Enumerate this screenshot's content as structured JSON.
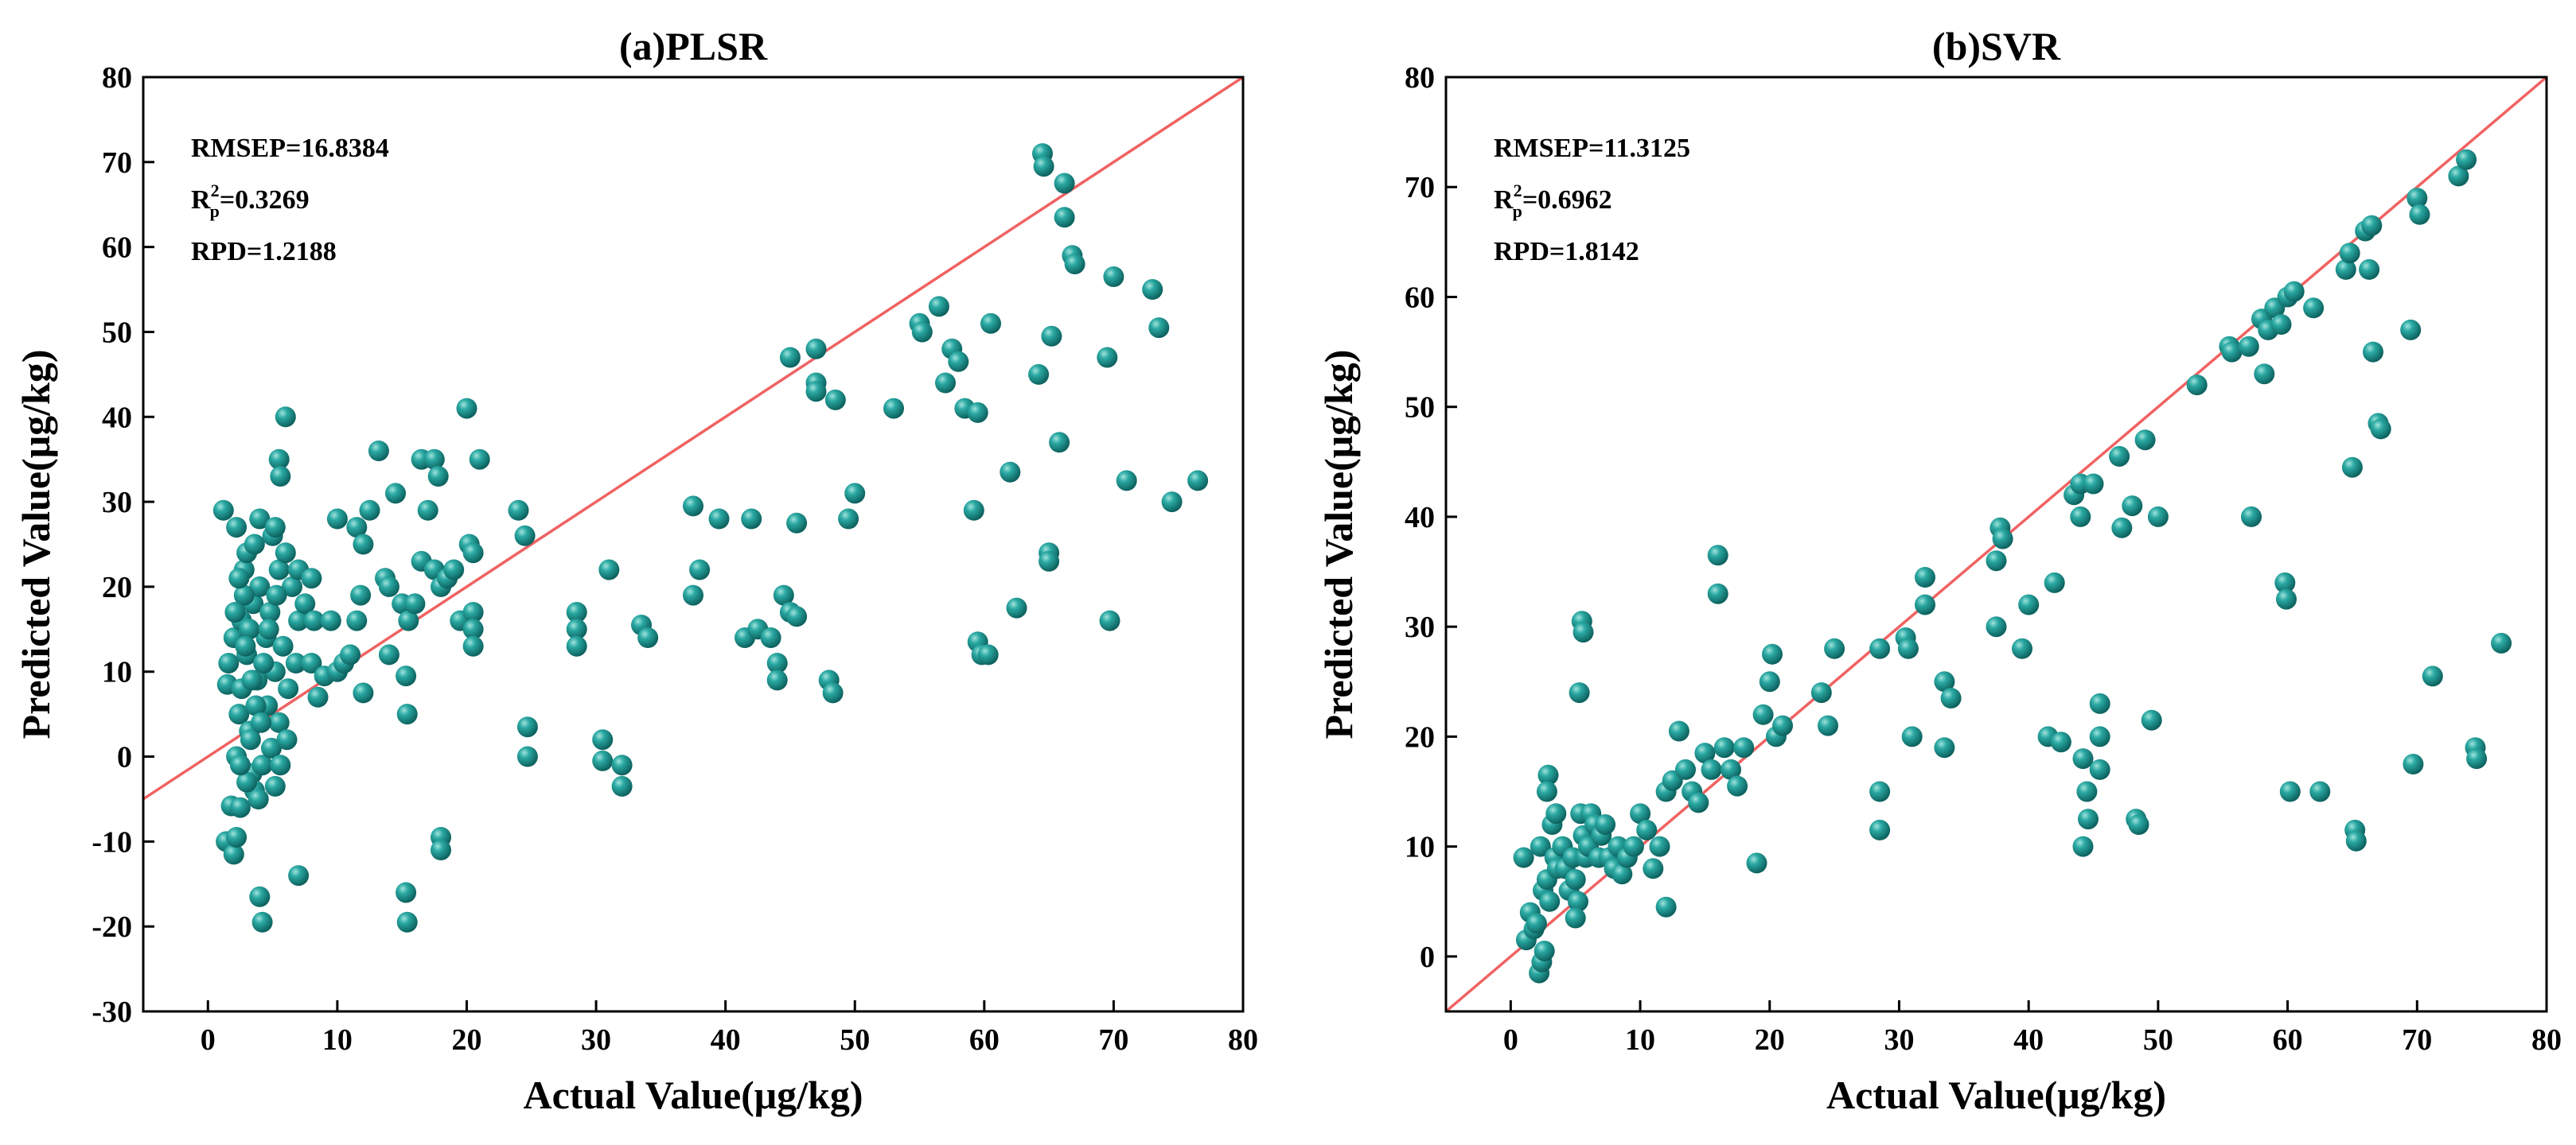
{
  "chart_data": [
    {
      "type": "scatter",
      "title": "(a)PLSR",
      "xlabel": "Actual Value(μg/kg)",
      "ylabel": "Predicted Value(μg/kg)",
      "xlim": [
        -5,
        80
      ],
      "ylim": [
        -30,
        80
      ],
      "xticks": [
        0,
        10,
        20,
        30,
        40,
        50,
        60,
        70,
        80
      ],
      "yticks": [
        -30,
        -20,
        -10,
        0,
        10,
        20,
        30,
        40,
        50,
        60,
        70,
        80
      ],
      "grid": false,
      "reference_line": "y = x",
      "reference_color": "#f06262",
      "point_color": "#178f8c",
      "annotations": [
        {
          "label": "RMSEP",
          "value": "16.8384"
        },
        {
          "label": "R",
          "superscript": "2",
          "subscript": "p",
          "value": "0.3269"
        },
        {
          "label": "RPD",
          "value": "1.2188"
        }
      ],
      "points": [
        [
          1.2,
          29
        ],
        [
          1.5,
          8.5
        ],
        [
          1.8,
          -5.8
        ],
        [
          1.4,
          -10
        ],
        [
          2,
          -11.5
        ],
        [
          2.2,
          -9.5
        ],
        [
          2.5,
          -6
        ],
        [
          1.6,
          11
        ],
        [
          2,
          14
        ],
        [
          2.2,
          27
        ],
        [
          2.4,
          5
        ],
        [
          2.6,
          16
        ],
        [
          2.8,
          22
        ],
        [
          3,
          24
        ],
        [
          3.2,
          3
        ],
        [
          3.4,
          -2
        ],
        [
          3.6,
          -4
        ],
        [
          2.2,
          0
        ],
        [
          2.6,
          8
        ],
        [
          3,
          12
        ],
        [
          3.5,
          18
        ],
        [
          4,
          20
        ],
        [
          4.5,
          14
        ],
        [
          4.8,
          17
        ],
        [
          5.2,
          10
        ],
        [
          5.5,
          4
        ],
        [
          4.2,
          -1
        ],
        [
          4.6,
          6
        ],
        [
          3.8,
          9
        ],
        [
          3.2,
          15
        ],
        [
          2.8,
          19
        ],
        [
          2.4,
          21
        ],
        [
          3.6,
          25
        ],
        [
          4,
          28
        ],
        [
          5,
          26
        ],
        [
          5.5,
          22
        ],
        [
          6,
          24
        ],
        [
          6.5,
          20
        ],
        [
          7,
          16
        ],
        [
          7.5,
          18
        ],
        [
          5.8,
          13
        ],
        [
          6.2,
          8
        ],
        [
          6.8,
          11
        ],
        [
          3,
          -3
        ],
        [
          3.3,
          2
        ],
        [
          3.7,
          6
        ],
        [
          4.3,
          11
        ],
        [
          4.7,
          15
        ],
        [
          5.3,
          19
        ],
        [
          2.1,
          17
        ],
        [
          2.9,
          13
        ],
        [
          3.4,
          9
        ],
        [
          4.1,
          4
        ],
        [
          4.9,
          1
        ],
        [
          5.6,
          -1
        ],
        [
          6.1,
          2
        ],
        [
          2.5,
          -1
        ],
        [
          3.9,
          -5
        ],
        [
          5.2,
          -3.5
        ],
        [
          6,
          40
        ],
        [
          5.5,
          35
        ],
        [
          5.6,
          33
        ],
        [
          5.2,
          27
        ],
        [
          4,
          -16.5
        ],
        [
          4.2,
          -19.5
        ],
        [
          7,
          -14
        ],
        [
          7,
          22
        ],
        [
          8,
          21
        ],
        [
          8.2,
          16
        ],
        [
          8,
          11
        ],
        [
          8.5,
          7
        ],
        [
          9,
          9.5
        ],
        [
          10,
          10
        ],
        [
          10.5,
          11
        ],
        [
          11,
          12
        ],
        [
          9.5,
          16
        ],
        [
          10,
          28
        ],
        [
          11.5,
          27
        ],
        [
          12,
          25
        ],
        [
          12.5,
          29
        ],
        [
          11.5,
          16
        ],
        [
          11.8,
          19
        ],
        [
          12,
          7.5
        ],
        [
          13.2,
          36
        ],
        [
          13.7,
          21
        ],
        [
          14,
          20
        ],
        [
          14,
          12
        ],
        [
          14.5,
          31
        ],
        [
          15,
          18
        ],
        [
          15.5,
          16
        ],
        [
          15.3,
          9.5
        ],
        [
          15.4,
          5
        ],
        [
          15.3,
          -16
        ],
        [
          15.4,
          -19.5
        ],
        [
          16.5,
          35
        ],
        [
          17,
          29
        ],
        [
          16.5,
          23
        ],
        [
          17.5,
          22
        ],
        [
          18,
          20
        ],
        [
          16,
          18
        ],
        [
          17.5,
          35
        ],
        [
          17.8,
          33
        ],
        [
          18.5,
          21
        ],
        [
          18,
          -9.5
        ],
        [
          18,
          -11
        ],
        [
          19,
          22
        ],
        [
          19.5,
          16
        ],
        [
          20,
          41
        ],
        [
          20.2,
          25
        ],
        [
          20.5,
          24
        ],
        [
          20.5,
          17
        ],
        [
          20.5,
          15
        ],
        [
          20.5,
          13
        ],
        [
          21,
          35
        ],
        [
          24,
          29
        ],
        [
          24.5,
          26
        ],
        [
          24.7,
          3.5
        ],
        [
          24.7,
          0
        ],
        [
          28.5,
          17
        ],
        [
          28.5,
          15
        ],
        [
          28.5,
          13
        ],
        [
          30.5,
          2
        ],
        [
          30.5,
          -0.5
        ],
        [
          31,
          22
        ],
        [
          32,
          -1
        ],
        [
          32,
          -3.5
        ],
        [
          33.5,
          15.5
        ],
        [
          34,
          14
        ],
        [
          37.5,
          29.5
        ],
        [
          37.5,
          19
        ],
        [
          38,
          22
        ],
        [
          39.5,
          28
        ],
        [
          41.5,
          14
        ],
        [
          42,
          28
        ],
        [
          42.5,
          15
        ],
        [
          43.5,
          14
        ],
        [
          44,
          11
        ],
        [
          44,
          9
        ],
        [
          44.5,
          19
        ],
        [
          45,
          17
        ],
        [
          45.5,
          16.5
        ],
        [
          45,
          47
        ],
        [
          45.5,
          27.5
        ],
        [
          47,
          48
        ],
        [
          47,
          44
        ],
        [
          47,
          43
        ],
        [
          48,
          9
        ],
        [
          48.3,
          7.5
        ],
        [
          48.5,
          42
        ],
        [
          49.5,
          28
        ],
        [
          50,
          31
        ],
        [
          53,
          41
        ],
        [
          55,
          51
        ],
        [
          55.2,
          50
        ],
        [
          56.5,
          53
        ],
        [
          57,
          44
        ],
        [
          57.5,
          48
        ],
        [
          58,
          46.5
        ],
        [
          58.5,
          41
        ],
        [
          59.5,
          40.5
        ],
        [
          59.2,
          29
        ],
        [
          59.5,
          13.5
        ],
        [
          59.8,
          12
        ],
        [
          60.3,
          12
        ],
        [
          60.5,
          51
        ],
        [
          62,
          33.5
        ],
        [
          62.5,
          17.5
        ],
        [
          64.2,
          45
        ],
        [
          64.5,
          71
        ],
        [
          64.6,
          69.5
        ],
        [
          65,
          24
        ],
        [
          65,
          23
        ],
        [
          65.2,
          49.5
        ],
        [
          65.8,
          37
        ],
        [
          66.2,
          67.5
        ],
        [
          66.2,
          63.5
        ],
        [
          66.8,
          59
        ],
        [
          67,
          58
        ],
        [
          69.5,
          47
        ],
        [
          69.7,
          16
        ],
        [
          70,
          56.5
        ],
        [
          71,
          32.5
        ],
        [
          73,
          55
        ],
        [
          73.5,
          50.5
        ],
        [
          74.5,
          30
        ],
        [
          76.5,
          32.5
        ]
      ]
    },
    {
      "type": "scatter",
      "title": "(b)SVR",
      "xlabel": "Actual Value(μg/kg)",
      "ylabel": "Predicted Value(μg/kg)",
      "xlim": [
        -5,
        80
      ],
      "ylim": [
        -5,
        80
      ],
      "xticks": [
        0,
        10,
        20,
        30,
        40,
        50,
        60,
        70,
        80
      ],
      "yticks": [
        0,
        10,
        20,
        30,
        40,
        50,
        60,
        70,
        80
      ],
      "grid": false,
      "reference_line": "y = x",
      "reference_color": "#f06262",
      "point_color": "#178f8c",
      "annotations": [
        {
          "label": "RMSEP",
          "value": "11.3125"
        },
        {
          "label": "R",
          "superscript": "2",
          "subscript": "p",
          "value": "0.6962"
        },
        {
          "label": "RPD",
          "value": "1.8142"
        }
      ],
      "points": [
        [
          1,
          9
        ],
        [
          1.2,
          1.5
        ],
        [
          1.5,
          4
        ],
        [
          1.8,
          2.5
        ],
        [
          2,
          3
        ],
        [
          2.2,
          -1.5
        ],
        [
          2.4,
          -0.5
        ],
        [
          2.6,
          0.5
        ],
        [
          2.3,
          10
        ],
        [
          2.5,
          6
        ],
        [
          2.8,
          7
        ],
        [
          3,
          5
        ],
        [
          3.2,
          12
        ],
        [
          3.4,
          9
        ],
        [
          3.6,
          8
        ],
        [
          2.9,
          16.5
        ],
        [
          2.8,
          15
        ],
        [
          3.5,
          13
        ],
        [
          4,
          10
        ],
        [
          4.2,
          8
        ],
        [
          4.5,
          6
        ],
        [
          4.8,
          9
        ],
        [
          5,
          7
        ],
        [
          5.2,
          5
        ],
        [
          5.4,
          13
        ],
        [
          5.6,
          11
        ],
        [
          5.8,
          9
        ],
        [
          6,
          10
        ],
        [
          6.2,
          13
        ],
        [
          6.5,
          12
        ],
        [
          5.3,
          24
        ],
        [
          5.5,
          30.5
        ],
        [
          5.6,
          29.5
        ],
        [
          5,
          3.5
        ],
        [
          6.8,
          9
        ],
        [
          7,
          11
        ],
        [
          7.3,
          12
        ],
        [
          7.6,
          9
        ],
        [
          8,
          8
        ],
        [
          8.3,
          10
        ],
        [
          8.6,
          7.5
        ],
        [
          9,
          9
        ],
        [
          9.5,
          10
        ],
        [
          10,
          13
        ],
        [
          10.5,
          11.5
        ],
        [
          11,
          8
        ],
        [
          11.5,
          10
        ],
        [
          12,
          4.5
        ],
        [
          12,
          15
        ],
        [
          12.5,
          16
        ],
        [
          13,
          20.5
        ],
        [
          13.5,
          17
        ],
        [
          14,
          15
        ],
        [
          14.5,
          14
        ],
        [
          15,
          18.5
        ],
        [
          15.5,
          17
        ],
        [
          16,
          36.5
        ],
        [
          16,
          33
        ],
        [
          16.5,
          19
        ],
        [
          17,
          17
        ],
        [
          17.5,
          15.5
        ],
        [
          18,
          19
        ],
        [
          19,
          8.5
        ],
        [
          19.5,
          22
        ],
        [
          20,
          25
        ],
        [
          20.2,
          27.5
        ],
        [
          20.5,
          20
        ],
        [
          21,
          21
        ],
        [
          24,
          24
        ],
        [
          24.5,
          21
        ],
        [
          25,
          28
        ],
        [
          28.5,
          28
        ],
        [
          28.5,
          15
        ],
        [
          28.5,
          11.5
        ],
        [
          30.5,
          29
        ],
        [
          30.7,
          28
        ],
        [
          31,
          20
        ],
        [
          32,
          34.5
        ],
        [
          32,
          32
        ],
        [
          33.5,
          19
        ],
        [
          33.5,
          25
        ],
        [
          34,
          23.5
        ],
        [
          37.5,
          30
        ],
        [
          37.5,
          36
        ],
        [
          37.8,
          39
        ],
        [
          38,
          38
        ],
        [
          39.5,
          28
        ],
        [
          40,
          32
        ],
        [
          41.5,
          20
        ],
        [
          42,
          34
        ],
        [
          42.5,
          19.5
        ],
        [
          43.5,
          42
        ],
        [
          44,
          43
        ],
        [
          44,
          40
        ],
        [
          44.2,
          18
        ],
        [
          44.5,
          15
        ],
        [
          44.6,
          12.5
        ],
        [
          44.2,
          10
        ],
        [
          45,
          43
        ],
        [
          45.5,
          23
        ],
        [
          45.5,
          20
        ],
        [
          45.5,
          17
        ],
        [
          47,
          45.5
        ],
        [
          47.2,
          39
        ],
        [
          48,
          41
        ],
        [
          48.3,
          12.5
        ],
        [
          48.5,
          12
        ],
        [
          49,
          47
        ],
        [
          49.5,
          21.5
        ],
        [
          50,
          40
        ],
        [
          53,
          52
        ],
        [
          55.5,
          55.5
        ],
        [
          55.7,
          55
        ],
        [
          57,
          55.5
        ],
        [
          57.2,
          40
        ],
        [
          58,
          58
        ],
        [
          58.2,
          53
        ],
        [
          58.5,
          57
        ],
        [
          59,
          59
        ],
        [
          59.5,
          57.5
        ],
        [
          59.8,
          34
        ],
        [
          59.9,
          32.5
        ],
        [
          60,
          60
        ],
        [
          60.2,
          15
        ],
        [
          60.5,
          60.5
        ],
        [
          62,
          59
        ],
        [
          62.5,
          15
        ],
        [
          64.5,
          62.5
        ],
        [
          64.8,
          64
        ],
        [
          65,
          44.5
        ],
        [
          65.2,
          11.5
        ],
        [
          65.3,
          10.5
        ],
        [
          66,
          66
        ],
        [
          66.3,
          62.5
        ],
        [
          66.5,
          66.5
        ],
        [
          66.6,
          55
        ],
        [
          67,
          48.5
        ],
        [
          67.2,
          48
        ],
        [
          69.5,
          57
        ],
        [
          69.7,
          17.5
        ],
        [
          70,
          69
        ],
        [
          70.2,
          67.5
        ],
        [
          71.2,
          25.5
        ],
        [
          73.2,
          71
        ],
        [
          73.8,
          72.5
        ],
        [
          74.5,
          19
        ],
        [
          74.6,
          18
        ],
        [
          76.5,
          28.5
        ]
      ]
    }
  ]
}
